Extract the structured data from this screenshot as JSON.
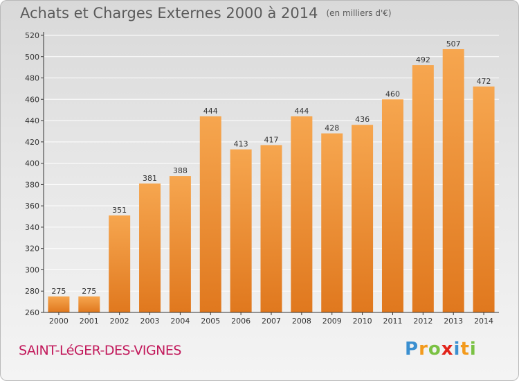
{
  "title": "Achats et Charges Externes 2000 à 2014",
  "subtitle": "(en milliers d'€)",
  "commune": "SAINT-LéGER-DES-VIGNES",
  "brand": {
    "letters": [
      "P",
      "r",
      "o",
      "x",
      "i",
      "t",
      "i"
    ],
    "colors": [
      "#3a8fd0",
      "#f39a1c",
      "#7ac143",
      "#e2231a",
      "#3a8fd0",
      "#f39a1c",
      "#7ac143"
    ]
  },
  "colors": {
    "bar_top": "#f6a64f",
    "bar_bottom": "#e0781e",
    "axis": "#333333",
    "grid": "#ffffff"
  },
  "chart_data": {
    "type": "bar",
    "categories": [
      "2000",
      "2001",
      "2002",
      "2003",
      "2004",
      "2005",
      "2006",
      "2007",
      "2008",
      "2009",
      "2010",
      "2011",
      "2012",
      "2013",
      "2014"
    ],
    "values": [
      275,
      275,
      351,
      381,
      388,
      444,
      413,
      417,
      444,
      428,
      436,
      460,
      492,
      507,
      472
    ],
    "ylim": [
      260,
      520
    ],
    "yticks": [
      260,
      280,
      300,
      320,
      340,
      360,
      380,
      400,
      420,
      440,
      460,
      480,
      500,
      520
    ],
    "grid": true,
    "title": "Achats et Charges Externes 2000 à 2014",
    "xlabel": "",
    "ylabel": ""
  }
}
